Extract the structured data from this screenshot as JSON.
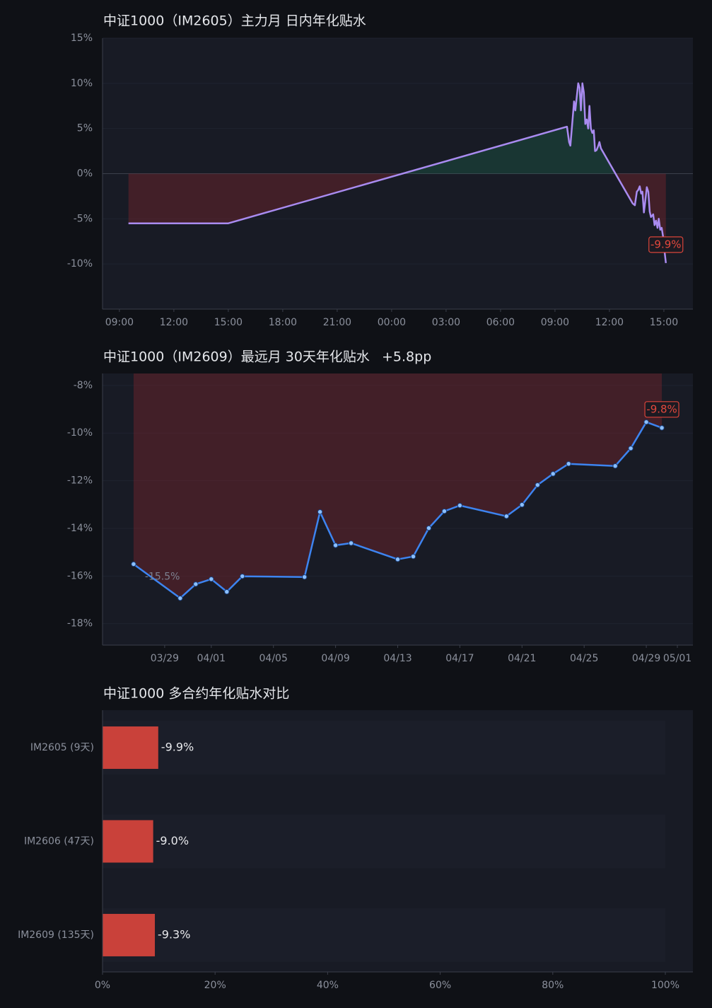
{
  "chart_data": [
    {
      "type": "line",
      "title": "中证1000（IM2605）主力月 日内年化贴水",
      "color": "#a98bf0",
      "grid": true,
      "x": [
        9.5,
        15,
        33.66,
        33.78,
        33.85,
        33.97,
        34.05,
        34.12,
        34.2,
        34.28,
        34.36,
        34.43,
        34.51,
        34.59,
        34.67,
        34.75,
        34.83,
        34.9,
        34.98,
        35.06,
        35.14,
        35.21,
        35.29,
        35.37,
        35.45,
        35.53,
        37.28,
        37.4,
        37.51,
        37.59,
        37.67,
        37.75,
        37.82,
        37.9,
        37.98,
        38.06,
        38.14,
        38.22,
        38.29,
        38.41,
        38.49,
        38.57,
        38.65,
        38.72,
        38.8,
        38.88,
        38.96,
        39.03,
        39.11
      ],
      "values": [
        -5.5,
        -5.5,
        5.2,
        3.5,
        3.1,
        6.0,
        8.0,
        7.0,
        8.5,
        10.0,
        9.5,
        7.0,
        10.0,
        9.0,
        5.5,
        6.0,
        5.0,
        7.5,
        5.0,
        4.5,
        4.8,
        2.5,
        2.6,
        3.0,
        3.5,
        2.8,
        -3.3,
        -3.5,
        -2.0,
        -1.8,
        -1.4,
        -2.2,
        -2.0,
        -4.3,
        -3.0,
        -1.5,
        -2.0,
        -4.2,
        -4.8,
        -4.5,
        -5.7,
        -5.2,
        -6.0,
        -5.0,
        -6.2,
        -6.0,
        -7.0,
        -8.5,
        -9.9
      ],
      "value_labels": [
        null,
        null,
        null,
        null,
        null,
        null,
        null,
        null,
        null,
        null,
        null,
        null,
        null,
        null,
        null,
        null,
        null,
        null,
        null,
        null,
        null,
        null,
        null,
        null,
        null,
        null,
        null,
        null,
        null,
        null,
        null,
        null,
        null,
        null,
        null,
        null,
        null,
        null,
        null,
        null,
        null,
        null,
        null,
        null,
        null,
        null,
        null,
        null,
        "-9.9%"
      ],
      "xlim": [
        8.07,
        40.6
      ],
      "xticks": [
        {
          "value": 9,
          "label": "09:00"
        },
        {
          "value": 12,
          "label": "12:00"
        },
        {
          "value": 15,
          "label": "15:00"
        },
        {
          "value": 18,
          "label": "18:00"
        },
        {
          "value": 21,
          "label": "21:00"
        },
        {
          "value": 24,
          "label": "00:00"
        },
        {
          "value": 27,
          "label": "03:00"
        },
        {
          "value": 30,
          "label": "06:00"
        },
        {
          "value": 33,
          "label": "09:00"
        },
        {
          "value": 36,
          "label": "12:00"
        },
        {
          "value": 39,
          "label": "15:00"
        }
      ],
      "ylim": [
        -15,
        15
      ],
      "yticks": [
        {
          "value": 15,
          "label": "15%"
        },
        {
          "value": 10,
          "label": "10%"
        },
        {
          "value": 5,
          "label": "5%"
        },
        {
          "value": 0,
          "label": "0%"
        },
        {
          "value": -5,
          "label": "-5%"
        },
        {
          "value": -10,
          "label": "-10%"
        }
      ]
    },
    {
      "type": "line",
      "title": "中证1000（IM2609）最远月 30天年化贴水",
      "subtitle": "+5.8pp",
      "color": "#3d84f0",
      "markers": true,
      "grid": true,
      "x": [
        "03/27",
        "03/30",
        "03/31",
        "04/01",
        "04/02",
        "04/03",
        "04/07",
        "04/08",
        "04/09",
        "04/10",
        "04/13",
        "04/14",
        "04/15",
        "04/16",
        "04/17",
        "04/20",
        "04/21",
        "04/22",
        "04/23",
        "04/24",
        "04/27",
        "04/28",
        "04/29",
        "04/30"
      ],
      "values": [
        -15.5,
        -16.93,
        -16.34,
        -16.13,
        -16.66,
        -16.01,
        -16.04,
        -13.31,
        -14.71,
        -14.62,
        -15.3,
        -15.18,
        -13.99,
        -13.28,
        -13.04,
        -13.49,
        -13.01,
        -12.18,
        -11.71,
        -11.29,
        -11.38,
        -10.64,
        -9.54,
        -9.78
      ],
      "value_labels": [
        "-15.5%",
        null,
        null,
        null,
        null,
        null,
        null,
        null,
        null,
        null,
        null,
        null,
        null,
        null,
        null,
        null,
        null,
        null,
        null,
        null,
        null,
        null,
        null,
        "-9.8%"
      ],
      "xlim": [
        "03/25",
        "05/02"
      ],
      "xticks": [
        "03/29",
        "04/01",
        "04/05",
        "04/09",
        "04/13",
        "04/17",
        "04/21",
        "04/25",
        "04/29",
        "05/01"
      ],
      "ylim": [
        -18.9,
        -7.5
      ],
      "yticks": [
        {
          "value": -8,
          "label": "-8%"
        },
        {
          "value": -10,
          "label": "-10%"
        },
        {
          "value": -12,
          "label": "-12%"
        },
        {
          "value": -14,
          "label": "-14%"
        },
        {
          "value": -16,
          "label": "-16%"
        },
        {
          "value": -18,
          "label": "-18%"
        }
      ]
    },
    {
      "type": "hbar",
      "title": "中证1000 多合约年化贴水对比",
      "color": "#c9413a",
      "categories": [
        "IM2605 (9天)",
        "IM2606 (47天)",
        "IM2609 (135天)"
      ],
      "values": [
        -9.9,
        -9.0,
        -9.3
      ],
      "value_labels": [
        "-9.9%",
        "-9.0%",
        "-9.3%"
      ],
      "xlim": [
        0,
        -100
      ],
      "xticks": [
        {
          "value": 0,
          "label": "0%"
        },
        {
          "value": -20,
          "label": "20%"
        },
        {
          "value": -40,
          "label": "40%"
        },
        {
          "value": -60,
          "label": "60%"
        },
        {
          "value": -80,
          "label": "80%"
        },
        {
          "value": -100,
          "label": "100%"
        }
      ]
    }
  ]
}
